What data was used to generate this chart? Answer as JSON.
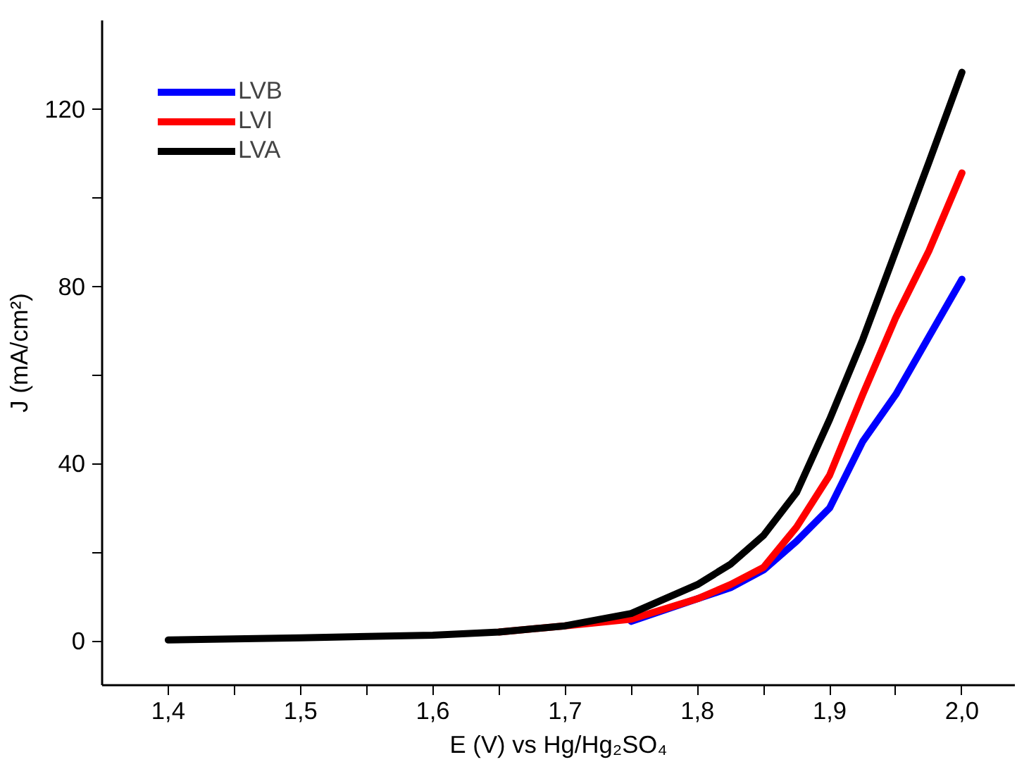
{
  "chart_data": {
    "type": "line",
    "xlabel": "E (V) vs Hg/Hg₂SO₄",
    "ylabel": "J (mA/cm²)",
    "x": [
      1.4,
      1.5,
      1.6,
      1.65,
      1.7,
      1.75,
      1.8,
      1.825,
      1.85,
      1.875,
      1.9,
      1.925,
      1.95,
      1.975,
      2.0
    ],
    "series": [
      {
        "name": "LVB",
        "color": "#0000ff",
        "values": [
          null,
          null,
          null,
          null,
          null,
          4.4,
          9.5,
          12,
          16,
          22.5,
          30,
          45,
          55.6,
          68.6,
          81.6
        ]
      },
      {
        "name": "LVI",
        "color": "#ff0000",
        "values": [
          null,
          null,
          null,
          2,
          3.4,
          4.9,
          9.5,
          12.7,
          16.6,
          25.7,
          37.4,
          55.6,
          73,
          88,
          105.6
        ]
      },
      {
        "name": "LVA",
        "color": "#000000",
        "values": [
          0.2,
          0.7,
          1.3,
          2,
          3.4,
          6.2,
          12.7,
          17.3,
          23.8,
          33.5,
          50,
          68,
          88,
          108,
          128.3
        ]
      }
    ],
    "xlim": [
      1.35,
      2.04
    ],
    "ylim": [
      -10,
      140
    ],
    "xticks": [
      {
        "value": 1.4,
        "label": "1,4"
      },
      {
        "value": 1.45,
        "label": null
      },
      {
        "value": 1.5,
        "label": "1,5"
      },
      {
        "value": 1.55,
        "label": null
      },
      {
        "value": 1.6,
        "label": "1,6"
      },
      {
        "value": 1.65,
        "label": null
      },
      {
        "value": 1.7,
        "label": "1,7"
      },
      {
        "value": 1.75,
        "label": null
      },
      {
        "value": 1.8,
        "label": "1,8"
      },
      {
        "value": 1.85,
        "label": null
      },
      {
        "value": 1.9,
        "label": "1,9"
      },
      {
        "value": 1.95,
        "label": null
      },
      {
        "value": 2.0,
        "label": "2,0"
      }
    ],
    "yticks": [
      0,
      {
        "value": 20,
        "label": null
      },
      40,
      {
        "value": 60,
        "label": null
      },
      80,
      {
        "value": 100,
        "label": null
      },
      120
    ],
    "grid": false,
    "legend": "top left",
    "marker": "none",
    "line_style": "solid"
  }
}
